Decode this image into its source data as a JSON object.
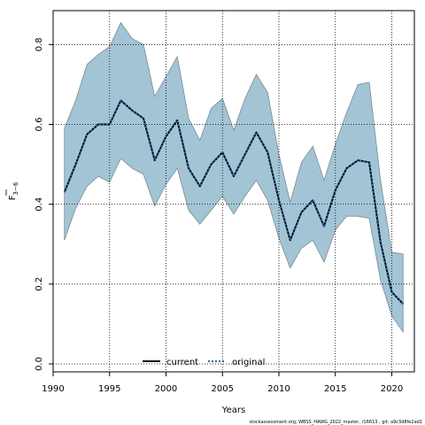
{
  "chart_data": {
    "type": "line",
    "xlabel": "Years",
    "ylabel_main": "F",
    "ylabel_sub": "3−6",
    "xlim": [
      1990,
      2022
    ],
    "ylim": [
      -0.02,
      0.885
    ],
    "x_ticks": [
      1990,
      1995,
      2000,
      2005,
      2010,
      2015,
      2020
    ],
    "y_ticks": [
      0.0,
      0.2,
      0.4,
      0.6,
      0.8
    ],
    "y_tick_labels": [
      "0.0",
      "0.2",
      "0.4",
      "0.6",
      "0.8"
    ],
    "grid": true,
    "legend_placement": "bottom-center",
    "x": [
      1991,
      1992,
      1993,
      1994,
      1995,
      1996,
      1997,
      1998,
      1999,
      2000,
      2001,
      2002,
      2003,
      2004,
      2005,
      2006,
      2007,
      2008,
      2009,
      2010,
      2011,
      2012,
      2013,
      2014,
      2015,
      2016,
      2017,
      2018,
      2019,
      2020,
      2021
    ],
    "series": [
      {
        "name": "current",
        "style": "solid",
        "color": "#000000",
        "values": [
          0.43,
          0.5,
          0.575,
          0.6,
          0.6,
          0.66,
          0.635,
          0.615,
          0.51,
          0.57,
          0.61,
          0.49,
          0.445,
          0.5,
          0.53,
          0.47,
          0.525,
          0.58,
          0.53,
          0.41,
          0.31,
          0.38,
          0.41,
          0.345,
          0.435,
          0.49,
          0.51,
          0.505,
          0.305,
          0.18,
          0.15
        ]
      },
      {
        "name": "original",
        "style": "dotted",
        "color": "#1f6fb0",
        "values": [
          0.43,
          0.5,
          0.575,
          0.6,
          0.6,
          0.66,
          0.635,
          0.615,
          0.51,
          0.57,
          0.61,
          0.49,
          0.445,
          0.5,
          0.53,
          0.47,
          0.525,
          0.58,
          0.53,
          0.41,
          0.31,
          0.38,
          0.41,
          0.345,
          0.435,
          0.49,
          0.51,
          0.505,
          0.305,
          0.18,
          0.15
        ]
      }
    ],
    "band": {
      "fill_color": "#a3c4d5",
      "edge_color": "#7a8a96",
      "upper": [
        0.59,
        0.66,
        0.75,
        0.775,
        0.795,
        0.855,
        0.815,
        0.8,
        0.67,
        0.72,
        0.77,
        0.615,
        0.56,
        0.64,
        0.665,
        0.585,
        0.665,
        0.725,
        0.68,
        0.525,
        0.405,
        0.505,
        0.545,
        0.46,
        0.55,
        0.63,
        0.7,
        0.705,
        0.46,
        0.28,
        0.275
      ],
      "lower": [
        0.31,
        0.39,
        0.445,
        0.47,
        0.455,
        0.515,
        0.49,
        0.475,
        0.395,
        0.45,
        0.49,
        0.385,
        0.35,
        0.385,
        0.42,
        0.375,
        0.42,
        0.46,
        0.41,
        0.315,
        0.24,
        0.29,
        0.31,
        0.255,
        0.335,
        0.37,
        0.37,
        0.365,
        0.21,
        0.12,
        0.08
      ]
    }
  },
  "footer": "stockassessment.org, WBSS_HAWG_2022_master, r16613 , git: a9c3d8fe2ad1"
}
